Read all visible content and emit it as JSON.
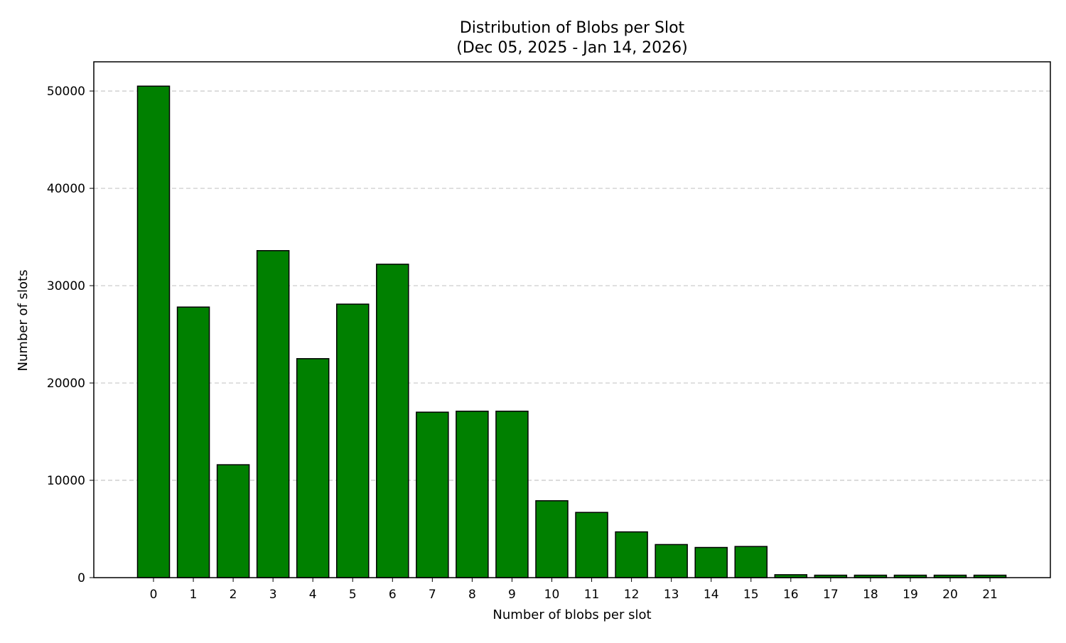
{
  "chart_data": {
    "type": "bar",
    "title": "Distribution of Blobs per Slot",
    "subtitle": "(Dec 05, 2025 - Jan 14, 2026)",
    "xlabel": "Number of blobs per slot",
    "ylabel": "Number of slots",
    "categories": [
      "0",
      "1",
      "2",
      "3",
      "4",
      "5",
      "6",
      "7",
      "8",
      "9",
      "10",
      "11",
      "12",
      "13",
      "14",
      "15",
      "16",
      "17",
      "18",
      "19",
      "20",
      "21"
    ],
    "values": [
      50500,
      27800,
      11600,
      33600,
      22500,
      28100,
      32200,
      17000,
      17100,
      17100,
      7900,
      6700,
      4700,
      3400,
      3100,
      3200,
      300,
      250,
      250,
      250,
      250,
      250
    ],
    "ylim": [
      0,
      53000
    ],
    "yticks": [
      0,
      10000,
      20000,
      30000,
      40000,
      50000
    ],
    "ytick_labels": [
      "0",
      "10000",
      "20000",
      "30000",
      "40000",
      "50000"
    ],
    "grid": "horizontal dashed",
    "bar_color": "#008000",
    "bar_edge_color": "#000000",
    "grid_color": "#c8c8c8"
  }
}
